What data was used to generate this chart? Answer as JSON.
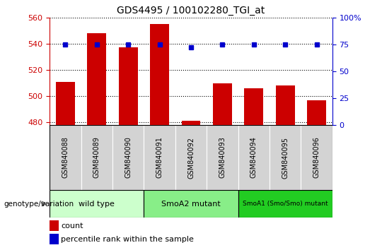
{
  "title": "GDS4495 / 100102280_TGI_at",
  "samples": [
    "GSM840088",
    "GSM840089",
    "GSM840090",
    "GSM840091",
    "GSM840092",
    "GSM840093",
    "GSM840094",
    "GSM840095",
    "GSM840096"
  ],
  "counts": [
    511,
    548,
    537,
    555,
    481,
    510,
    506,
    508,
    497
  ],
  "percentiles": [
    75,
    75,
    75,
    75,
    72,
    75,
    75,
    75,
    75
  ],
  "ylim_left": [
    478,
    560
  ],
  "ylim_right": [
    0,
    100
  ],
  "yticks_left": [
    480,
    500,
    520,
    540,
    560
  ],
  "yticks_right": [
    0,
    25,
    50,
    75,
    100
  ],
  "bar_color": "#cc0000",
  "dot_color": "#0000cc",
  "groups": [
    {
      "label": "wild type",
      "start": 0,
      "end": 3,
      "color": "#ccffcc"
    },
    {
      "label": "SmoA2 mutant",
      "start": 3,
      "end": 6,
      "color": "#88ee88"
    },
    {
      "label": "SmoA1 (Smo/Smo) mutant",
      "start": 6,
      "end": 9,
      "color": "#22cc22"
    }
  ],
  "xlabel_genotype": "genotype/variation",
  "legend_count": "count",
  "legend_percentile": "percentile rank within the sample",
  "tick_label_color_left": "#cc0000",
  "tick_label_color_right": "#0000cc",
  "grid_color": "black",
  "bar_width": 0.6,
  "bg_color": "#d3d3d3"
}
